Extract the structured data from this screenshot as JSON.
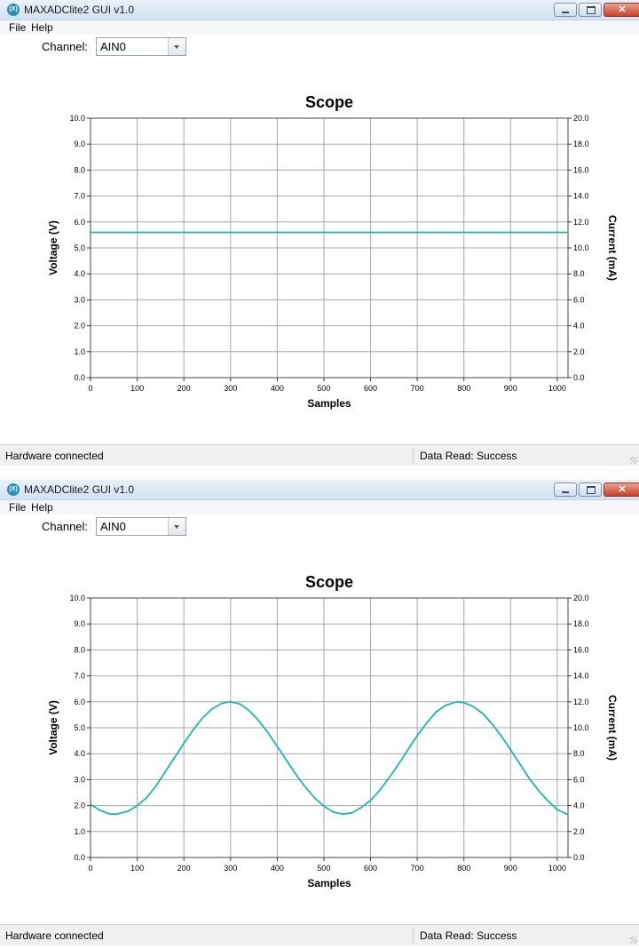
{
  "windows": [
    {
      "title": "MAXADClite2 GUI v1.0",
      "app_icon": "maxim-logo-icon",
      "menu": [
        "File",
        "Help"
      ],
      "channel_label": "Channel:",
      "channel_value": "AIN0",
      "status_left": "Hardware connected",
      "status_right": "Data Read: Success",
      "chart_data": {
        "type": "line",
        "title": "Scope",
        "xlabel": "Samples",
        "ylabel": "Voltage (V)",
        "y2label": "Current (mA)",
        "xlim": [
          0,
          1023
        ],
        "ylim": [
          0,
          10
        ],
        "y2lim": [
          0,
          20
        ],
        "xticks": [
          "0",
          "100",
          "200",
          "300",
          "400",
          "500",
          "600",
          "700",
          "800",
          "900",
          "1000"
        ],
        "yticks": [
          "0.0",
          "1.0",
          "2.0",
          "3.0",
          "4.0",
          "5.0",
          "6.0",
          "7.0",
          "8.0",
          "9.0",
          "10.0"
        ],
        "y2ticks": [
          "0.0",
          "2.0",
          "4.0",
          "6.0",
          "8.0",
          "10.0",
          "12.0",
          "14.0",
          "16.0",
          "18.0",
          "20.0"
        ],
        "grid": true,
        "line_color": "#1fb5a9",
        "series": [
          {
            "x": [
              0,
              100,
              200,
              300,
              400,
              500,
              600,
              700,
              800,
              900,
              1023
            ],
            "values": [
              5.6,
              5.6,
              5.6,
              5.6,
              5.6,
              5.6,
              5.6,
              5.6,
              5.6,
              5.6,
              5.6
            ]
          }
        ]
      }
    },
    {
      "title": "MAXADClite2 GUI v1.0",
      "app_icon": "maxim-logo-icon",
      "menu": [
        "File",
        "Help"
      ],
      "channel_label": "Channel:",
      "channel_value": "AIN0",
      "status_left": "Hardware connected",
      "status_right": "Data Read: Success",
      "chart_data": {
        "type": "line",
        "title": "Scope",
        "xlabel": "Samples",
        "ylabel": "Voltage (V)",
        "y2label": "Current (mA)",
        "xlim": [
          0,
          1023
        ],
        "ylim": [
          0,
          10
        ],
        "y2lim": [
          0,
          20
        ],
        "xticks": [
          "0",
          "100",
          "200",
          "300",
          "400",
          "500",
          "600",
          "700",
          "800",
          "900",
          "1000"
        ],
        "yticks": [
          "0.0",
          "1.0",
          "2.0",
          "3.0",
          "4.0",
          "5.0",
          "6.0",
          "7.0",
          "8.0",
          "9.0",
          "10.0"
        ],
        "y2ticks": [
          "0.0",
          "2.0",
          "4.0",
          "6.0",
          "8.0",
          "10.0",
          "12.0",
          "14.0",
          "16.0",
          "18.0",
          "20.0"
        ],
        "grid": true,
        "line_color": "#1fb5a9",
        "series": [
          {
            "x": [
              0,
              20,
              40,
              55,
              80,
              100,
              120,
              140,
              160,
              180,
              200,
              220,
              240,
              260,
              280,
              298,
              320,
              340,
              360,
              380,
              400,
              420,
              440,
              460,
              480,
              500,
              520,
              540,
              560,
              580,
              600,
              620,
              640,
              660,
              680,
              700,
              720,
              740,
              760,
              785,
              800,
              820,
              840,
              860,
              880,
              900,
              920,
              940,
              960,
              980,
              1000,
              1023
            ],
            "values": [
              2.05,
              1.82,
              1.68,
              1.67,
              1.78,
              2.0,
              2.3,
              2.75,
              3.3,
              3.85,
              4.4,
              4.92,
              5.38,
              5.72,
              5.93,
              6.0,
              5.92,
              5.66,
              5.28,
              4.82,
              4.28,
              3.74,
              3.2,
              2.72,
              2.3,
              1.98,
              1.75,
              1.67,
              1.72,
              1.92,
              2.2,
              2.6,
              3.08,
              3.6,
              4.15,
              4.7,
              5.18,
              5.6,
              5.86,
              6.0,
              5.97,
              5.82,
              5.55,
              5.15,
              4.68,
              4.15,
              3.6,
              3.05,
              2.58,
              2.18,
              1.85,
              1.65
            ]
          }
        ]
      }
    }
  ]
}
